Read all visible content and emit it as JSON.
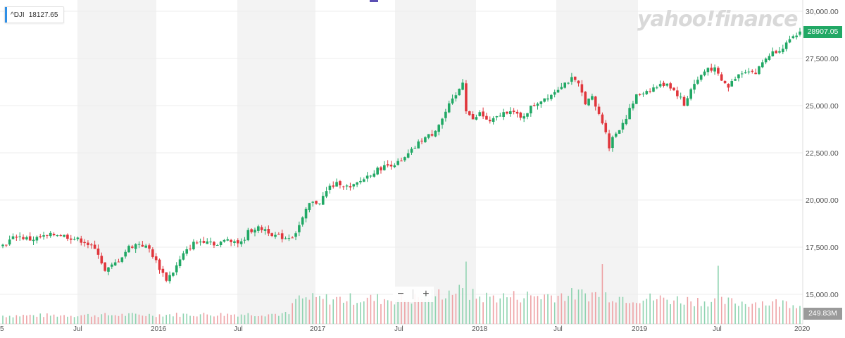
{
  "ticker": {
    "symbol": "^DJI",
    "value": "18127.65"
  },
  "brand": "yahoo!finance",
  "price_tag": "28907.05",
  "volume_tag": "249.83M",
  "zoom": {
    "minus": "−",
    "plus": "+"
  },
  "colors": {
    "up": "#21a865",
    "down": "#e0363c",
    "up_vol": "#8fd3b0",
    "down_vol": "#eea2a5",
    "band": "#f3f3f3",
    "grid": "#ececec"
  },
  "chart_data": {
    "type": "candlestick",
    "y_ticks": [
      "30,000.00",
      "27,500.00",
      "25,000.00",
      "22,500.00",
      "20,000.00",
      "17,500.00",
      "15,000.00"
    ],
    "x_ticks": [
      "5",
      "Jul",
      "2016",
      "Jul",
      "2017",
      "Jul",
      "2018",
      "Jul",
      "2019",
      "Jul",
      "2020"
    ],
    "ylim": [
      14000,
      30000
    ],
    "grid": true,
    "weekly_close_path": [
      [
        0,
        17600
      ],
      [
        4,
        18100
      ],
      [
        8,
        17900
      ],
      [
        12,
        18050
      ],
      [
        16,
        18200
      ],
      [
        20,
        18000
      ],
      [
        24,
        17800
      ],
      [
        28,
        17200
      ],
      [
        30,
        16200
      ],
      [
        32,
        16500
      ],
      [
        34,
        16800
      ],
      [
        37,
        17500
      ],
      [
        40,
        17700
      ],
      [
        43,
        17400
      ],
      [
        46,
        16400
      ],
      [
        48,
        15800
      ],
      [
        50,
        16200
      ],
      [
        53,
        17100
      ],
      [
        56,
        17700
      ],
      [
        60,
        17900
      ],
      [
        63,
        17600
      ],
      [
        66,
        17950
      ],
      [
        70,
        17700
      ],
      [
        72,
        18300
      ],
      [
        74,
        18500
      ],
      [
        77,
        18450
      ],
      [
        80,
        18100
      ],
      [
        83,
        18000
      ],
      [
        85,
        18100
      ],
      [
        86,
        18300
      ],
      [
        88,
        19000
      ],
      [
        90,
        19800
      ],
      [
        93,
        19900
      ],
      [
        96,
        20700
      ],
      [
        99,
        20900
      ],
      [
        102,
        20600
      ],
      [
        105,
        21000
      ],
      [
        108,
        21400
      ],
      [
        111,
        21700
      ],
      [
        114,
        21900
      ],
      [
        117,
        22000
      ],
      [
        120,
        22600
      ],
      [
        123,
        23200
      ],
      [
        126,
        23500
      ],
      [
        129,
        24300
      ],
      [
        131,
        25000
      ],
      [
        133,
        25500
      ],
      [
        135,
        26300
      ],
      [
        136,
        24800
      ],
      [
        138,
        24200
      ],
      [
        140,
        24600
      ],
      [
        143,
        24100
      ],
      [
        146,
        24500
      ],
      [
        149,
        24800
      ],
      [
        152,
        24300
      ],
      [
        155,
        24900
      ],
      [
        158,
        25300
      ],
      [
        161,
        25600
      ],
      [
        164,
        26100
      ],
      [
        167,
        26400
      ],
      [
        169,
        26100
      ],
      [
        171,
        25200
      ],
      [
        173,
        25400
      ],
      [
        175,
        24500
      ],
      [
        177,
        23700
      ],
      [
        178,
        22800
      ],
      [
        179,
        23300
      ],
      [
        181,
        23800
      ],
      [
        183,
        24400
      ],
      [
        186,
        25500
      ],
      [
        189,
        25800
      ],
      [
        192,
        26000
      ],
      [
        195,
        26200
      ],
      [
        197,
        25800
      ],
      [
        199,
        25400
      ],
      [
        200,
        25000
      ],
      [
        202,
        25900
      ],
      [
        205,
        26600
      ],
      [
        207,
        27000
      ],
      [
        209,
        26900
      ],
      [
        211,
        26300
      ],
      [
        213,
        26000
      ],
      [
        215,
        26500
      ],
      [
        217,
        26800
      ],
      [
        219,
        26900
      ],
      [
        221,
        26700
      ],
      [
        223,
        27300
      ],
      [
        225,
        27700
      ],
      [
        228,
        28000
      ],
      [
        231,
        28400
      ],
      [
        234,
        28900
      ]
    ],
    "volume_profile": [
      [
        0,
        0.1
      ],
      [
        84,
        0.12
      ],
      [
        86,
        0.3
      ],
      [
        120,
        0.3
      ],
      [
        133,
        0.4
      ],
      [
        140,
        0.32
      ],
      [
        175,
        0.36
      ],
      [
        182,
        0.32
      ],
      [
        205,
        0.28
      ],
      [
        215,
        0.26
      ],
      [
        234,
        0.25
      ]
    ],
    "volume_spikes": [
      [
        136,
        0.75
      ],
      [
        176,
        0.72
      ],
      [
        210,
        0.7
      ]
    ]
  }
}
